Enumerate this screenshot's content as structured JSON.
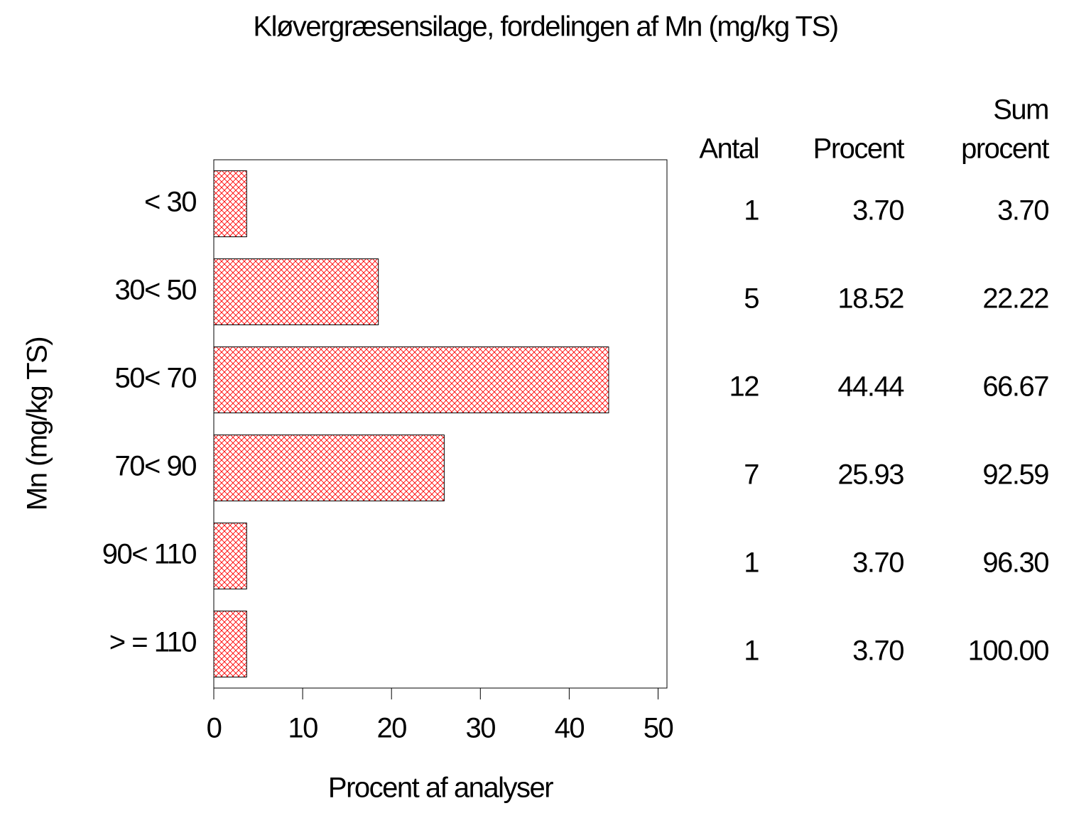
{
  "chart_data": {
    "type": "bar",
    "orientation": "horizontal",
    "title": "Kløvergræsensilage, fordelingen af Mn (mg/kg TS)",
    "x_label": "Procent af analyser",
    "y_label": "Mn (mg/kg TS)",
    "categories": [
      "< 30",
      "30< 50",
      "50< 70",
      "70< 90",
      "90< 110",
      "> = 110"
    ],
    "values": [
      3.7,
      18.52,
      44.44,
      25.93,
      3.7,
      3.7
    ],
    "value_labels": [
      "3.70",
      "18.52",
      "44.44",
      "25.93",
      "3.70",
      "3.70"
    ],
    "color": "#ff0000",
    "xlim": [
      0,
      51
    ],
    "xticks": [
      0,
      10,
      20,
      30,
      40,
      50
    ],
    "table": {
      "headers": [
        "Antal",
        "Procent",
        [
          "Sum",
          "procent"
        ]
      ],
      "counts": [
        1,
        5,
        12,
        7,
        1,
        1
      ],
      "sum_procent": [
        "3.70",
        "22.22",
        "66.67",
        "92.59",
        "96.30",
        "100.00"
      ]
    }
  }
}
